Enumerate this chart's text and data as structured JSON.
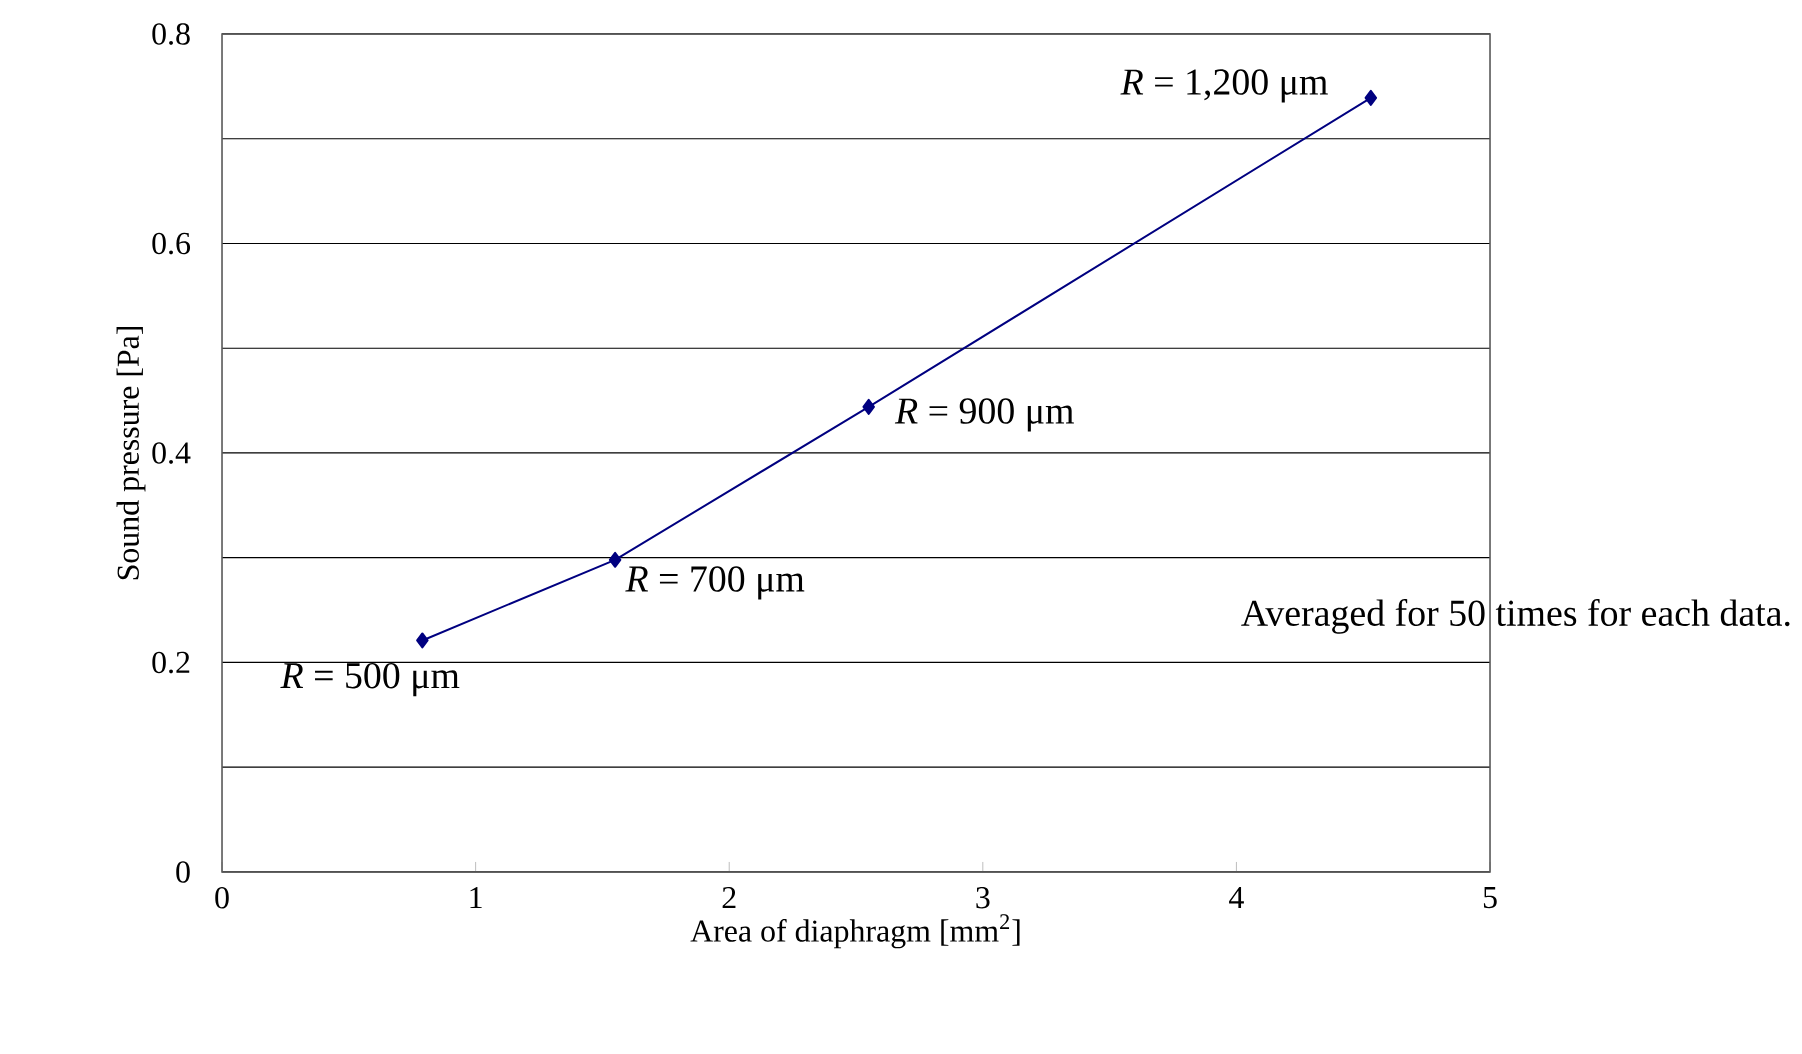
{
  "chart_data": {
    "type": "line",
    "xlabel": "Area of diaphragm [mm$^{2}$]",
    "ylabel": "Sound pressure [Pa]",
    "x": [
      0.79,
      1.55,
      2.55,
      4.53
    ],
    "values": [
      0.221,
      0.298,
      0.444,
      0.739
    ],
    "color": "#000080",
    "marker": "diamond",
    "line_style": "solid",
    "grid": "y",
    "xlim": [
      0,
      5
    ],
    "xticks": [
      0,
      1,
      2,
      3,
      4,
      5
    ],
    "ylim": [
      0,
      0.8
    ],
    "yticks": [
      0,
      {
        "value": 0.1,
        "label": null
      },
      0.2,
      {
        "value": 0.3,
        "label": null
      },
      0.4,
      {
        "value": 0.5,
        "label": null
      },
      0.6,
      {
        "value": 0.7,
        "label": null
      },
      0.8
    ],
    "annotations": [
      {
        "text": "*R* = 500 μm",
        "x": 0.79,
        "y": 0.221
      },
      {
        "text": "*R* = 700 μm",
        "x": 1.55,
        "y": 0.298
      },
      {
        "text": "*R* = 900 μm",
        "x": 2.55,
        "y": 0.444
      },
      {
        "text": "*R* = 1,200 μm",
        "x": 4.53,
        "y": 0.739
      },
      "Averaged for 50 times for each data."
    ]
  }
}
